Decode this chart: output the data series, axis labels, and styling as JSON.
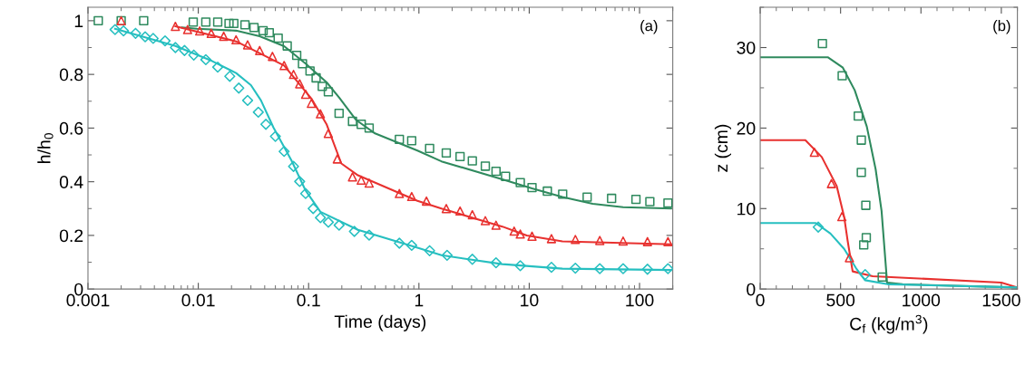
{
  "chart_data": [
    {
      "type": "scatter",
      "xlabel": "Time (days)",
      "ylabel": "h/h$_{0}$",
      "log": "x",
      "xlim": [
        0.001,
        200
      ],
      "ylim": [
        0,
        1.05
      ],
      "xticks": [
        0.001,
        {
          "value": 0.002,
          "label": null
        },
        {
          "value": 0.003,
          "label": null
        },
        {
          "value": 0.004,
          "label": null
        },
        {
          "value": 0.005,
          "label": null
        },
        {
          "value": 0.006,
          "label": null
        },
        {
          "value": 0.007,
          "label": null
        },
        {
          "value": 0.008,
          "label": null
        },
        {
          "value": 0.009,
          "label": null
        },
        0.01,
        {
          "value": 0.02,
          "label": null
        },
        {
          "value": 0.03,
          "label": null
        },
        {
          "value": 0.04,
          "label": null
        },
        {
          "value": 0.05,
          "label": null
        },
        {
          "value": 0.06,
          "label": null
        },
        {
          "value": 0.07,
          "label": null
        },
        {
          "value": 0.08,
          "label": null
        },
        {
          "value": 0.09,
          "label": null
        },
        0.1,
        {
          "value": 0.2,
          "label": null
        },
        {
          "value": 0.3,
          "label": null
        },
        {
          "value": 0.4,
          "label": null
        },
        {
          "value": 0.5,
          "label": null
        },
        {
          "value": 0.6,
          "label": null
        },
        {
          "value": 0.7,
          "label": null
        },
        {
          "value": 0.8,
          "label": null
        },
        {
          "value": 0.9,
          "label": null
        },
        1,
        {
          "value": 2,
          "label": null
        },
        {
          "value": 3,
          "label": null
        },
        {
          "value": 4,
          "label": null
        },
        {
          "value": 5,
          "label": null
        },
        {
          "value": 6,
          "label": null
        },
        {
          "value": 7,
          "label": null
        },
        {
          "value": 8,
          "label": null
        },
        {
          "value": 9,
          "label": null
        },
        10,
        {
          "value": 20,
          "label": null
        },
        {
          "value": 30,
          "label": null
        },
        {
          "value": 40,
          "label": null
        },
        {
          "value": 50,
          "label": null
        },
        {
          "value": 60,
          "label": null
        },
        {
          "value": 70,
          "label": null
        },
        {
          "value": 80,
          "label": null
        },
        {
          "value": 90,
          "label": null
        },
        100,
        {
          "value": 200,
          "label": null
        }
      ],
      "yticks": [
        0,
        {
          "value": 0.1,
          "label": null
        },
        0.2,
        {
          "value": 0.3,
          "label": null
        },
        0.4,
        {
          "value": 0.5,
          "label": null
        },
        0.6,
        {
          "value": 0.7,
          "label": null
        },
        0.8,
        {
          "value": 0.9,
          "label": null
        },
        1
      ],
      "annotations": [
        "(a)"
      ],
      "series": [
        {
          "type": "scatter",
          "marker": "square",
          "color": "#2f8a5e",
          "x": [
            0.00124,
            0.002,
            0.0032,
            0.009,
            0.0117,
            0.015,
            0.019,
            0.021,
            0.0265,
            0.032,
            0.0387,
            0.044,
            0.053,
            0.064,
            0.078,
            0.088,
            0.103,
            0.117,
            0.133,
            0.151,
            0.189,
            0.25,
            0.3,
            0.354,
            0.665,
            0.86,
            1.25,
            1.77,
            2.36,
            3.05,
            4.0,
            5.0,
            6.1,
            8.3,
            10.6,
            14.6,
            20.1,
            33.5,
            55.8,
            92.8,
            124,
            181
          ],
          "values": [
            1.0,
            1.0,
            1.0,
            0.995,
            0.995,
            0.995,
            0.99,
            0.99,
            0.985,
            0.975,
            0.963,
            0.955,
            0.935,
            0.906,
            0.871,
            0.84,
            0.813,
            0.787,
            0.755,
            0.735,
            0.655,
            0.625,
            0.614,
            0.6,
            0.558,
            0.553,
            0.524,
            0.507,
            0.494,
            0.478,
            0.458,
            0.439,
            0.42,
            0.397,
            0.378,
            0.365,
            0.354,
            0.343,
            0.338,
            0.334,
            0.326,
            0.321
          ]
        },
        {
          "type": "line",
          "color": "#2f8a5e",
          "x": [
            0.0071,
            0.0097,
            0.022,
            0.036,
            0.06,
            0.094,
            0.146,
            0.189,
            0.27,
            0.4,
            0.97,
            1.6,
            5.7,
            10.6,
            20,
            37.6,
            70.9,
            193
          ],
          "values": [
            0.975,
            0.97,
            0.963,
            0.942,
            0.905,
            0.84,
            0.77,
            0.714,
            0.63,
            0.58,
            0.516,
            0.476,
            0.409,
            0.375,
            0.343,
            0.318,
            0.305,
            0.3
          ]
        },
        {
          "type": "scatter",
          "marker": "triangle",
          "color": "#e8312f",
          "x": [
            0.002,
            0.0062,
            0.008,
            0.0103,
            0.0131,
            0.017,
            0.022,
            0.028,
            0.036,
            0.047,
            0.06,
            0.073,
            0.083,
            0.094,
            0.106,
            0.128,
            0.151,
            0.182,
            0.25,
            0.3,
            0.354,
            0.665,
            0.86,
            1.17,
            1.77,
            2.36,
            3.05,
            4.0,
            5.0,
            7.3,
            8.3,
            10.6,
            15.9,
            26.2,
            43.6,
            71,
            118,
            181
          ],
          "values": [
            1.0,
            0.979,
            0.967,
            0.962,
            0.953,
            0.942,
            0.929,
            0.91,
            0.889,
            0.867,
            0.833,
            0.8,
            0.765,
            0.726,
            0.692,
            0.653,
            0.58,
            0.485,
            0.418,
            0.406,
            0.395,
            0.356,
            0.345,
            0.328,
            0.3,
            0.291,
            0.277,
            0.255,
            0.238,
            0.216,
            0.205,
            0.197,
            0.188,
            0.185,
            0.181,
            0.179,
            0.177,
            0.177
          ]
        },
        {
          "type": "line",
          "color": "#e8312f",
          "x": [
            0.0062,
            0.022,
            0.06,
            0.106,
            0.146,
            0.198,
            0.28,
            0.97,
            1.6,
            5.7,
            9.5,
            20,
            193
          ],
          "values": [
            0.979,
            0.923,
            0.833,
            0.71,
            0.613,
            0.468,
            0.424,
            0.329,
            0.3,
            0.233,
            0.2,
            0.178,
            0.167
          ]
        },
        {
          "type": "scatter",
          "marker": "diamond",
          "color": "#26bfc0",
          "x": [
            0.00176,
            0.0021,
            0.0027,
            0.0033,
            0.0039,
            0.005,
            0.0062,
            0.0075,
            0.0091,
            0.0117,
            0.015,
            0.0193,
            0.0233,
            0.028,
            0.035,
            0.041,
            0.05,
            0.06,
            0.073,
            0.083,
            0.094,
            0.11,
            0.128,
            0.151,
            0.189,
            0.26,
            0.354,
            0.665,
            0.86,
            1.25,
            1.8,
            3.05,
            5.0,
            8.3,
            15.9,
            26.2,
            43.6,
            71,
            118,
            181
          ],
          "values": [
            0.967,
            0.962,
            0.953,
            0.94,
            0.934,
            0.925,
            0.9,
            0.889,
            0.872,
            0.855,
            0.827,
            0.793,
            0.749,
            0.703,
            0.659,
            0.614,
            0.569,
            0.513,
            0.457,
            0.401,
            0.356,
            0.3,
            0.266,
            0.249,
            0.238,
            0.215,
            0.201,
            0.171,
            0.163,
            0.143,
            0.126,
            0.111,
            0.098,
            0.087,
            0.081,
            0.078,
            0.076,
            0.076,
            0.074,
            0.076
          ]
        },
        {
          "type": "line",
          "color": "#26bfc0",
          "x": [
            0.00176,
            0.0062,
            0.0133,
            0.022,
            0.03,
            0.037,
            0.048,
            0.07,
            0.094,
            0.128,
            0.28,
            0.97,
            1.6,
            5.7,
            20,
            193
          ],
          "values": [
            0.97,
            0.906,
            0.85,
            0.805,
            0.76,
            0.703,
            0.602,
            0.479,
            0.367,
            0.288,
            0.221,
            0.154,
            0.126,
            0.093,
            0.076,
            0.071
          ]
        }
      ]
    },
    {
      "type": "scatter",
      "xlabel": "C$_{f}$ (kg/m$^{3}$)",
      "ylabel": "z (cm)",
      "xlim": [
        0,
        1600
      ],
      "ylim": [
        0,
        35
      ],
      "xticks": [
        0,
        {
          "value": 100,
          "label": null
        },
        {
          "value": 200,
          "label": null
        },
        {
          "value": 300,
          "label": null
        },
        {
          "value": 400,
          "label": null
        },
        500,
        {
          "value": 600,
          "label": null
        },
        {
          "value": 700,
          "label": null
        },
        {
          "value": 800,
          "label": null
        },
        {
          "value": 900,
          "label": null
        },
        1000,
        {
          "value": 1100,
          "label": null
        },
        {
          "value": 1200,
          "label": null
        },
        {
          "value": 1300,
          "label": null
        },
        {
          "value": 1400,
          "label": null
        },
        1500,
        {
          "value": 1600,
          "label": null
        }
      ],
      "yticks": [
        0,
        {
          "value": 5,
          "label": null
        },
        10,
        {
          "value": 15,
          "label": null
        },
        20,
        {
          "value": 25,
          "label": null
        },
        30,
        {
          "value": 35,
          "label": null
        }
      ],
      "annotations": [
        "(b)"
      ],
      "series": [
        {
          "type": "scatter",
          "marker": "square",
          "color": "#2f8a5e",
          "x": [
            387,
            510,
            610,
            629,
            629,
            657,
            660,
            644,
            759
          ],
          "values": [
            30.5,
            26.5,
            21.5,
            18.5,
            14.5,
            10.4,
            6.4,
            5.5,
            1.5
          ]
        },
        {
          "type": "line",
          "color": "#2f8a5e",
          "x": [
            0,
            420,
            514,
            588,
            663,
            718,
            755,
            784,
            789,
            886,
            1600
          ],
          "values": [
            28.8,
            28.8,
            27.5,
            24.7,
            20.2,
            14.9,
            9.7,
            2.2,
            0.8,
            0.6,
            0.2
          ]
        },
        {
          "type": "scatter",
          "marker": "triangle",
          "color": "#e8312f",
          "x": [
            337,
            443,
            508,
            555
          ],
          "values": [
            17.0,
            13.1,
            9.0,
            3.9
          ]
        },
        {
          "type": "line",
          "color": "#e8312f",
          "x": [
            0,
            281,
            383,
            476,
            522,
            544,
            575,
            700,
            1500,
            1600
          ],
          "values": [
            18.5,
            18.5,
            16.4,
            12.8,
            9.0,
            6.0,
            2.2,
            1.6,
            0.8,
            0.2
          ]
        },
        {
          "type": "scatter",
          "marker": "diamond",
          "color": "#26bfc0",
          "x": [
            361,
            653
          ],
          "values": [
            7.7,
            1.8
          ]
        },
        {
          "type": "line",
          "color": "#26bfc0",
          "x": [
            0,
            346,
            437,
            522,
            596,
            652,
            793,
            1600
          ],
          "values": [
            8.2,
            8.2,
            6.9,
            5.0,
            2.6,
            1.1,
            0.6,
            0.2
          ]
        }
      ]
    }
  ]
}
